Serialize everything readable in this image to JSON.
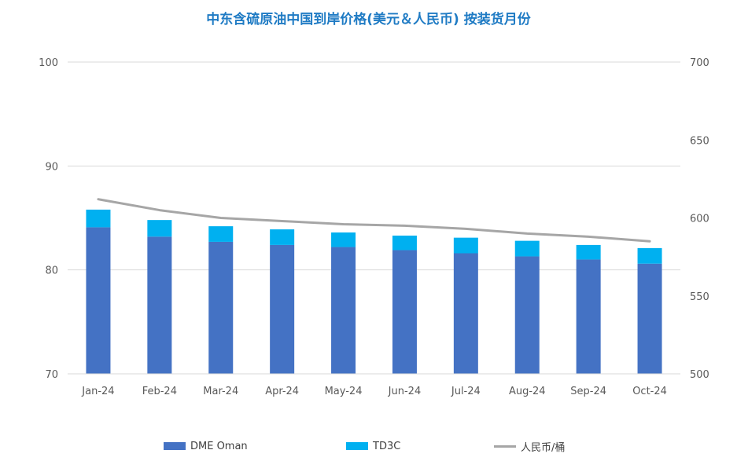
{
  "chart_data": {
    "type": "bar",
    "title": "中东含硫原油中国到岸价格(美元＆人民币) 按装货月份",
    "categories": [
      "Jan-24",
      "Feb-24",
      "Mar-24",
      "Apr-24",
      "May-24",
      "Jun-24",
      "Jul-24",
      "Aug-24",
      "Sep-24",
      "Oct-24"
    ],
    "series": [
      {
        "name": "DME Oman",
        "kind": "stacked-bar",
        "axis": "left",
        "values": [
          84.1,
          83.2,
          82.7,
          82.4,
          82.2,
          81.9,
          81.6,
          81.3,
          81.0,
          80.6
        ]
      },
      {
        "name": "TD3C",
        "kind": "stacked-bar",
        "axis": "left",
        "values": [
          1.7,
          1.6,
          1.5,
          1.5,
          1.4,
          1.4,
          1.5,
          1.5,
          1.4,
          1.5
        ]
      },
      {
        "name": "人民币/桶",
        "kind": "line",
        "axis": "right",
        "values": [
          612,
          605,
          600,
          598,
          596,
          595,
          593,
          590,
          588,
          585
        ]
      }
    ],
    "y_left": {
      "lim": [
        70,
        100
      ],
      "ticks": [
        "70",
        "80",
        "90",
        "100"
      ]
    },
    "y_right": {
      "lim": [
        500,
        700
      ],
      "ticks": [
        "500",
        "550",
        "600",
        "650",
        "700"
      ]
    },
    "grid": true,
    "legend_position": "bottom",
    "colors": {
      "DME Oman": "#4472c4",
      "TD3C": "#00b0f0",
      "人民币/桶": "#a6a6a6",
      "title": "#1f7bc4",
      "grid": "#d9d9d9"
    }
  }
}
